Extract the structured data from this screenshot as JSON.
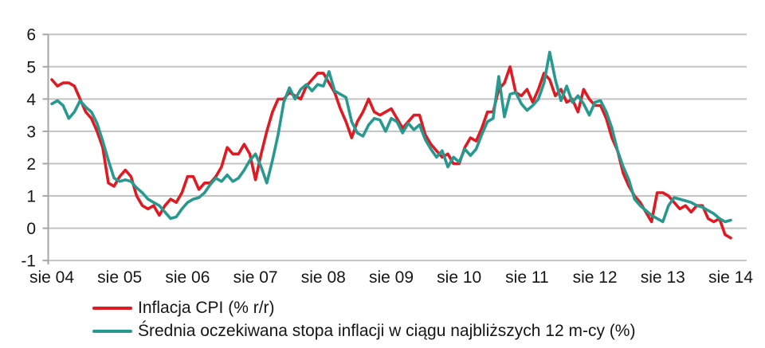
{
  "chart_data": {
    "type": "line",
    "title": "",
    "xlabel": "",
    "ylabel": "",
    "grid": true,
    "legend_position": "bottom-left",
    "y_ticks": [
      6,
      5,
      4,
      3,
      2,
      1,
      0,
      -1
    ],
    "y_range": [
      -1,
      6
    ],
    "x_tick_labels": [
      "sie 04",
      "sie 05",
      "sie 06",
      "sie 07",
      "sie 08",
      "sie 09",
      "sie 10",
      "sie 11",
      "sie 12",
      "sie 13",
      "sie 14"
    ],
    "x_tick_positions_months": [
      0,
      12,
      24,
      36,
      48,
      60,
      72,
      84,
      96,
      108,
      120
    ],
    "x_unit": "month",
    "points_start_label": "sie 04",
    "points_end_label": "sie 14",
    "series": [
      {
        "name": "Inflacja CPI (% r/r)",
        "color": "#E01A22",
        "values": [
          4.6,
          4.4,
          4.5,
          4.5,
          4.4,
          4.0,
          3.6,
          3.4,
          3.0,
          2.5,
          1.4,
          1.3,
          1.6,
          1.8,
          1.6,
          1.0,
          0.7,
          0.6,
          0.7,
          0.4,
          0.7,
          0.9,
          0.8,
          1.1,
          1.6,
          1.6,
          1.2,
          1.4,
          1.4,
          1.6,
          1.9,
          2.5,
          2.3,
          2.3,
          2.6,
          2.3,
          1.5,
          2.3,
          3.0,
          3.6,
          4.0,
          4.0,
          4.2,
          4.1,
          4.0,
          4.4,
          4.6,
          4.8,
          4.8,
          4.5,
          4.2,
          3.7,
          3.3,
          2.8,
          3.3,
          3.6,
          4.0,
          3.6,
          3.5,
          3.6,
          3.7,
          3.4,
          3.1,
          3.3,
          3.5,
          3.5,
          2.9,
          2.6,
          2.4,
          2.2,
          2.3,
          2.0,
          2.0,
          2.5,
          2.8,
          2.7,
          3.1,
          3.6,
          3.6,
          4.3,
          4.5,
          5.0,
          4.2,
          4.1,
          4.3,
          3.9,
          4.3,
          4.8,
          4.6,
          4.1,
          4.3,
          3.9,
          4.0,
          3.6,
          4.3,
          4.0,
          3.8,
          3.8,
          3.4,
          2.8,
          2.4,
          1.7,
          1.3,
          1.0,
          0.8,
          0.5,
          0.2,
          1.1,
          1.1,
          1.0,
          0.8,
          0.6,
          0.7,
          0.5,
          0.7,
          0.7,
          0.3,
          0.2,
          0.3,
          -0.2,
          -0.3
        ]
      },
      {
        "name": "Średnia oczekiwana stopa inflacji w ciągu najbliższych 12 m-cy (%)",
        "color": "#27998F",
        "values": [
          3.85,
          3.95,
          3.8,
          3.4,
          3.6,
          3.95,
          3.75,
          3.6,
          3.25,
          2.7,
          2.1,
          1.55,
          1.45,
          1.5,
          1.45,
          1.25,
          1.1,
          0.9,
          0.8,
          0.7,
          0.5,
          0.3,
          0.35,
          0.6,
          0.8,
          0.9,
          0.95,
          1.1,
          1.35,
          1.55,
          1.45,
          1.65,
          1.45,
          1.55,
          1.8,
          2.1,
          2.3,
          1.9,
          1.4,
          2.1,
          2.9,
          3.9,
          4.35,
          4.0,
          4.3,
          4.45,
          4.25,
          4.45,
          4.4,
          4.85,
          4.25,
          4.15,
          4.05,
          3.3,
          2.95,
          2.85,
          3.2,
          3.4,
          3.35,
          3.0,
          3.4,
          3.3,
          2.95,
          3.25,
          3.05,
          3.2,
          2.75,
          2.45,
          2.2,
          2.4,
          1.9,
          2.2,
          2.05,
          2.45,
          2.25,
          2.45,
          2.9,
          3.3,
          3.4,
          4.7,
          3.45,
          4.15,
          4.2,
          3.85,
          3.65,
          3.8,
          4.0,
          4.5,
          5.45,
          4.6,
          3.95,
          4.4,
          3.9,
          4.1,
          3.85,
          3.5,
          3.9,
          3.95,
          3.6,
          3.1,
          2.4,
          1.9,
          1.5,
          0.9,
          0.7,
          0.55,
          0.4,
          0.3,
          0.2,
          0.7,
          0.95,
          0.9,
          0.85,
          0.8,
          0.7,
          0.65,
          0.55,
          0.45,
          0.3,
          0.2,
          0.25
        ]
      }
    ]
  },
  "colors": {
    "background": "#FFFFFF",
    "gridline": "#C3C3C3",
    "axis": "#A6A6A6",
    "tick_text": "#161616",
    "legend_text": "#161616",
    "series_cpi": "#E01A22",
    "series_expected": "#27998F"
  }
}
